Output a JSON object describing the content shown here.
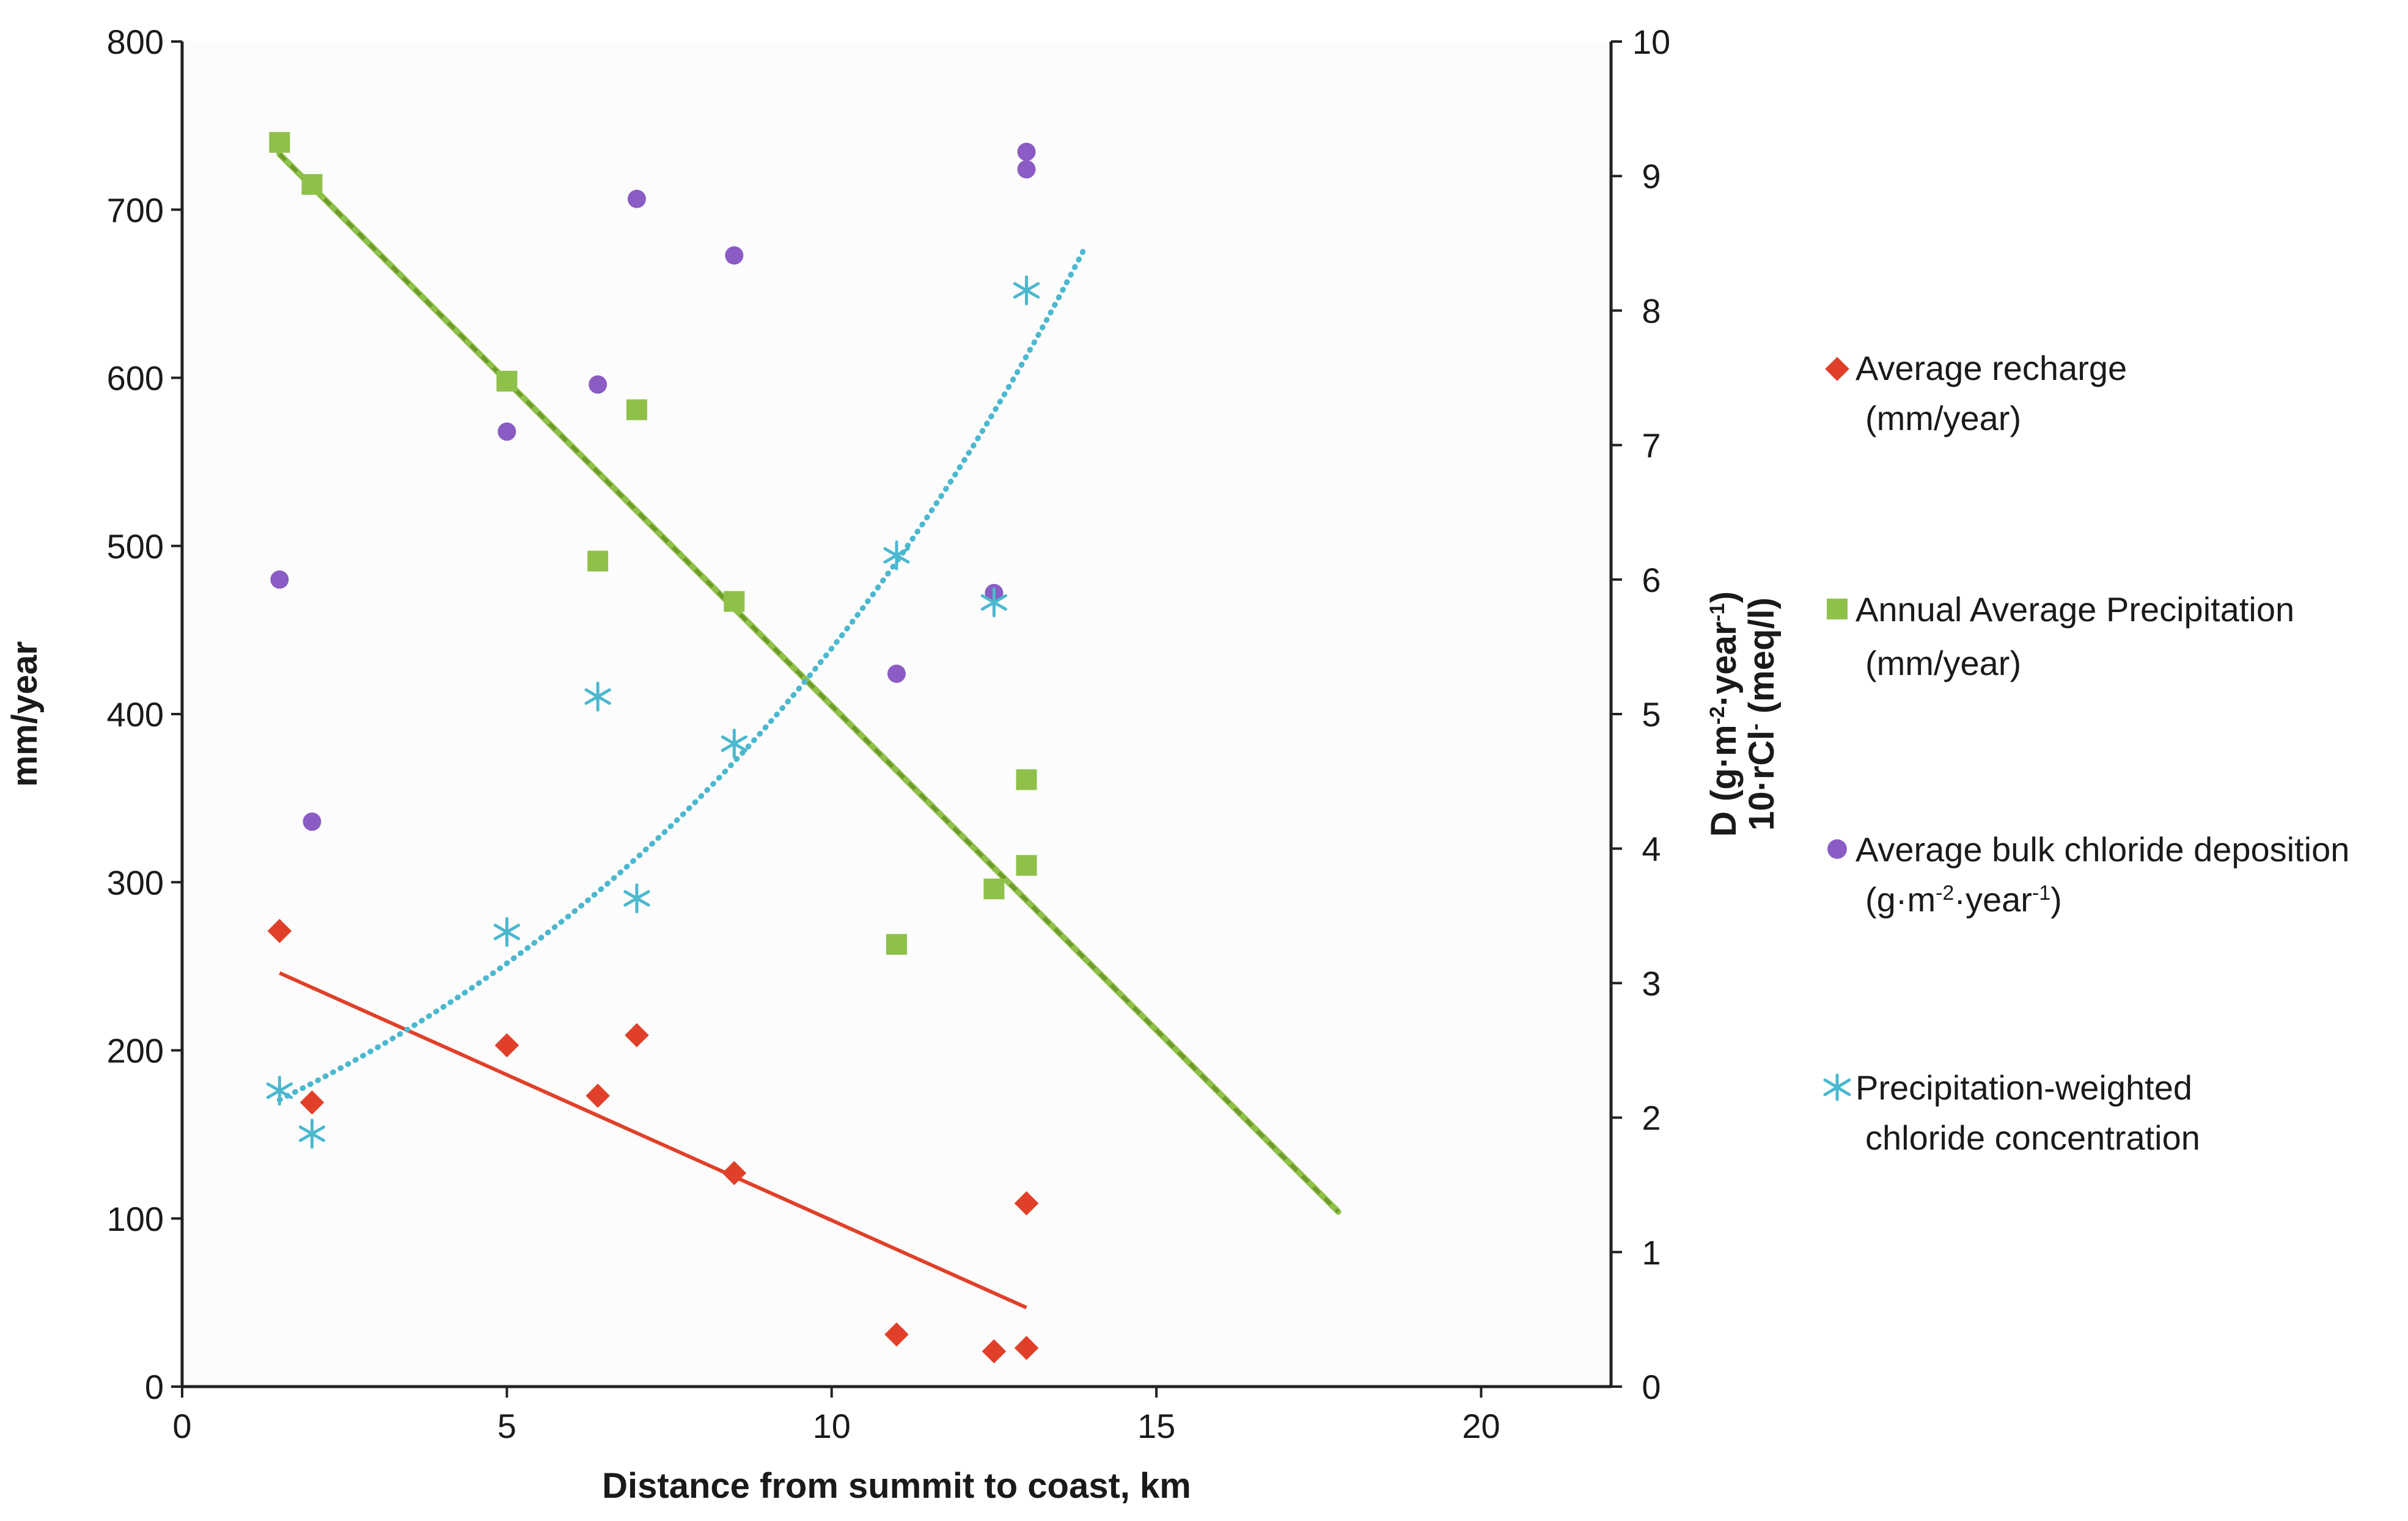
{
  "chart_data": {
    "type": "scatter",
    "x_axis": {
      "label": "Distance from summit to coast, km",
      "range": [
        0,
        22
      ],
      "ticks": [
        0,
        5,
        10,
        15,
        20
      ]
    },
    "y_axis_left": {
      "label": "mm/year",
      "range": [
        0,
        800
      ],
      "ticks": [
        0,
        100,
        200,
        300,
        400,
        500,
        600,
        700,
        800
      ]
    },
    "y_axis_right": {
      "label_line1": "D (g·m",
      "label_line1_sup1": "-2",
      "label_line1_mid": "·year",
      "label_line1_sup2": "-1",
      "label_line1_end": ")",
      "label_line2": "10·rCl",
      "label_line2_sup": "-",
      "label_line2_end": " (meq/l)",
      "range": [
        0,
        10
      ],
      "ticks": [
        0,
        1,
        2,
        3,
        4,
        5,
        6,
        7,
        8,
        9,
        10
      ]
    },
    "grid": false,
    "legend_position": "right",
    "series": [
      {
        "name": "Average recharge",
        "name_line2": "(mm/year)",
        "axis": "left",
        "marker": "diamond",
        "color": "#e0402a",
        "x": [
          1.5,
          2,
          5,
          6.4,
          7,
          8.5,
          11,
          12.5,
          13,
          13
        ],
        "y": [
          271,
          169,
          203,
          173,
          209,
          127,
          31,
          21,
          23,
          109
        ],
        "trendline": {
          "style": "solid",
          "kind": "linear",
          "from": [
            1.5,
            246
          ],
          "to": [
            13,
            47
          ]
        }
      },
      {
        "name": "Annual Average Precipitation",
        "name_line2": "(mm/year)",
        "axis": "left",
        "marker": "square",
        "color": "#8fc04a",
        "x": [
          1.5,
          2,
          5,
          6.4,
          7,
          8.5,
          11,
          12.5,
          13,
          13
        ],
        "y": [
          740,
          715,
          598,
          491,
          581,
          467,
          263,
          296,
          310,
          361
        ],
        "trendline": {
          "style": "dashed",
          "kind": "linear",
          "from": [
            1.5,
            733
          ],
          "to": [
            17.8,
            104
          ]
        }
      },
      {
        "name": "Average bulk chloride deposition",
        "name_line2": "(g·m",
        "name_line2_sup1": "-2",
        "name_line2_mid": "·year",
        "name_line2_sup2": "-1",
        "name_line2_end": ")",
        "axis": "right",
        "marker": "circle",
        "color": "#8a5cc4",
        "x": [
          1.5,
          2,
          5,
          6.4,
          7,
          8.5,
          11,
          12.5,
          13,
          13
        ],
        "y": [
          6.0,
          4.2,
          7.1,
          7.45,
          8.83,
          8.41,
          5.3,
          5.9,
          9.18,
          9.05
        ]
      },
      {
        "name": "Precipitation-weighted",
        "name_line2": "chloride concentration",
        "axis": "right",
        "marker": "asterisk",
        "color": "#4bb8cf",
        "x": [
          1.5,
          2,
          5,
          6.4,
          7,
          8.5,
          11,
          12.5,
          13
        ],
        "y": [
          2.2,
          1.88,
          3.38,
          5.13,
          3.63,
          4.78,
          6.18,
          5.83,
          8.15
        ],
        "trendline": {
          "style": "dotted",
          "kind": "exponential",
          "a": 1.805,
          "b": 0.1112,
          "x_from": 1.5,
          "x_to": 13.9
        }
      }
    ]
  }
}
